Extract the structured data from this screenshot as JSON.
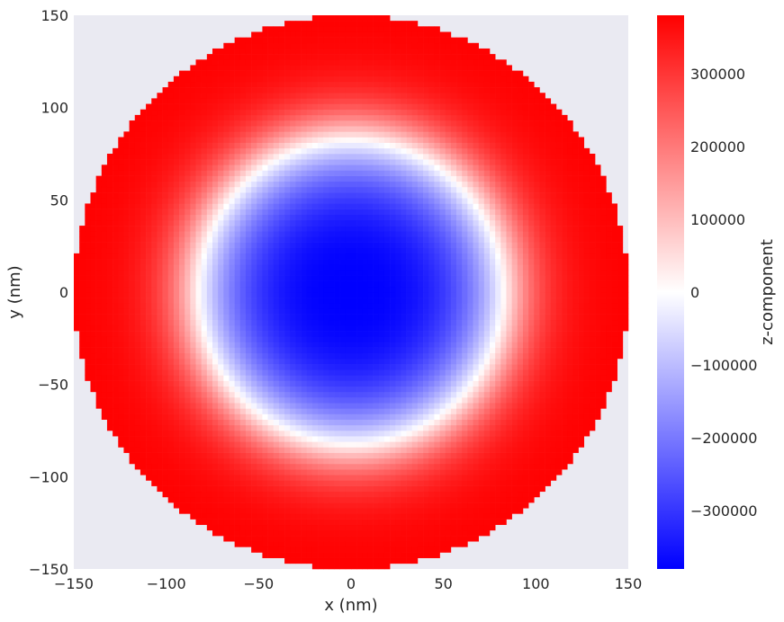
{
  "chart_data": {
    "type": "heatmap",
    "title": "",
    "xlabel": "x (nm)",
    "ylabel": "y (nm)",
    "xlim": [
      -150,
      150
    ],
    "ylim": [
      -150,
      150
    ],
    "xticks": [
      "−150",
      "−100",
      "−50",
      "0",
      "50",
      "100",
      "150"
    ],
    "xtick_values": [
      -150,
      -100,
      -50,
      0,
      50,
      100,
      150
    ],
    "yticks": [
      "−150",
      "−100",
      "−50",
      "0",
      "50",
      "100",
      "150"
    ],
    "ytick_values": [
      -150,
      -100,
      -50,
      0,
      50,
      100,
      150
    ],
    "grid": false,
    "background_color": "#eaeaf2",
    "colormap": "bwr",
    "colorbar": {
      "label": "z-component",
      "range": [
        -380000,
        380000
      ],
      "ticks": [
        "300000",
        "200000",
        "100000",
        "0",
        "−100000",
        "−200000",
        "−300000"
      ],
      "tick_values": [
        300000,
        200000,
        100000,
        0,
        -100000,
        -200000,
        -300000
      ]
    },
    "field": {
      "disk_radius_nm": 150,
      "core_radius_nm": 82,
      "core_value": -380000,
      "outer_value": 380000,
      "cell_size_nm": 3
    }
  }
}
